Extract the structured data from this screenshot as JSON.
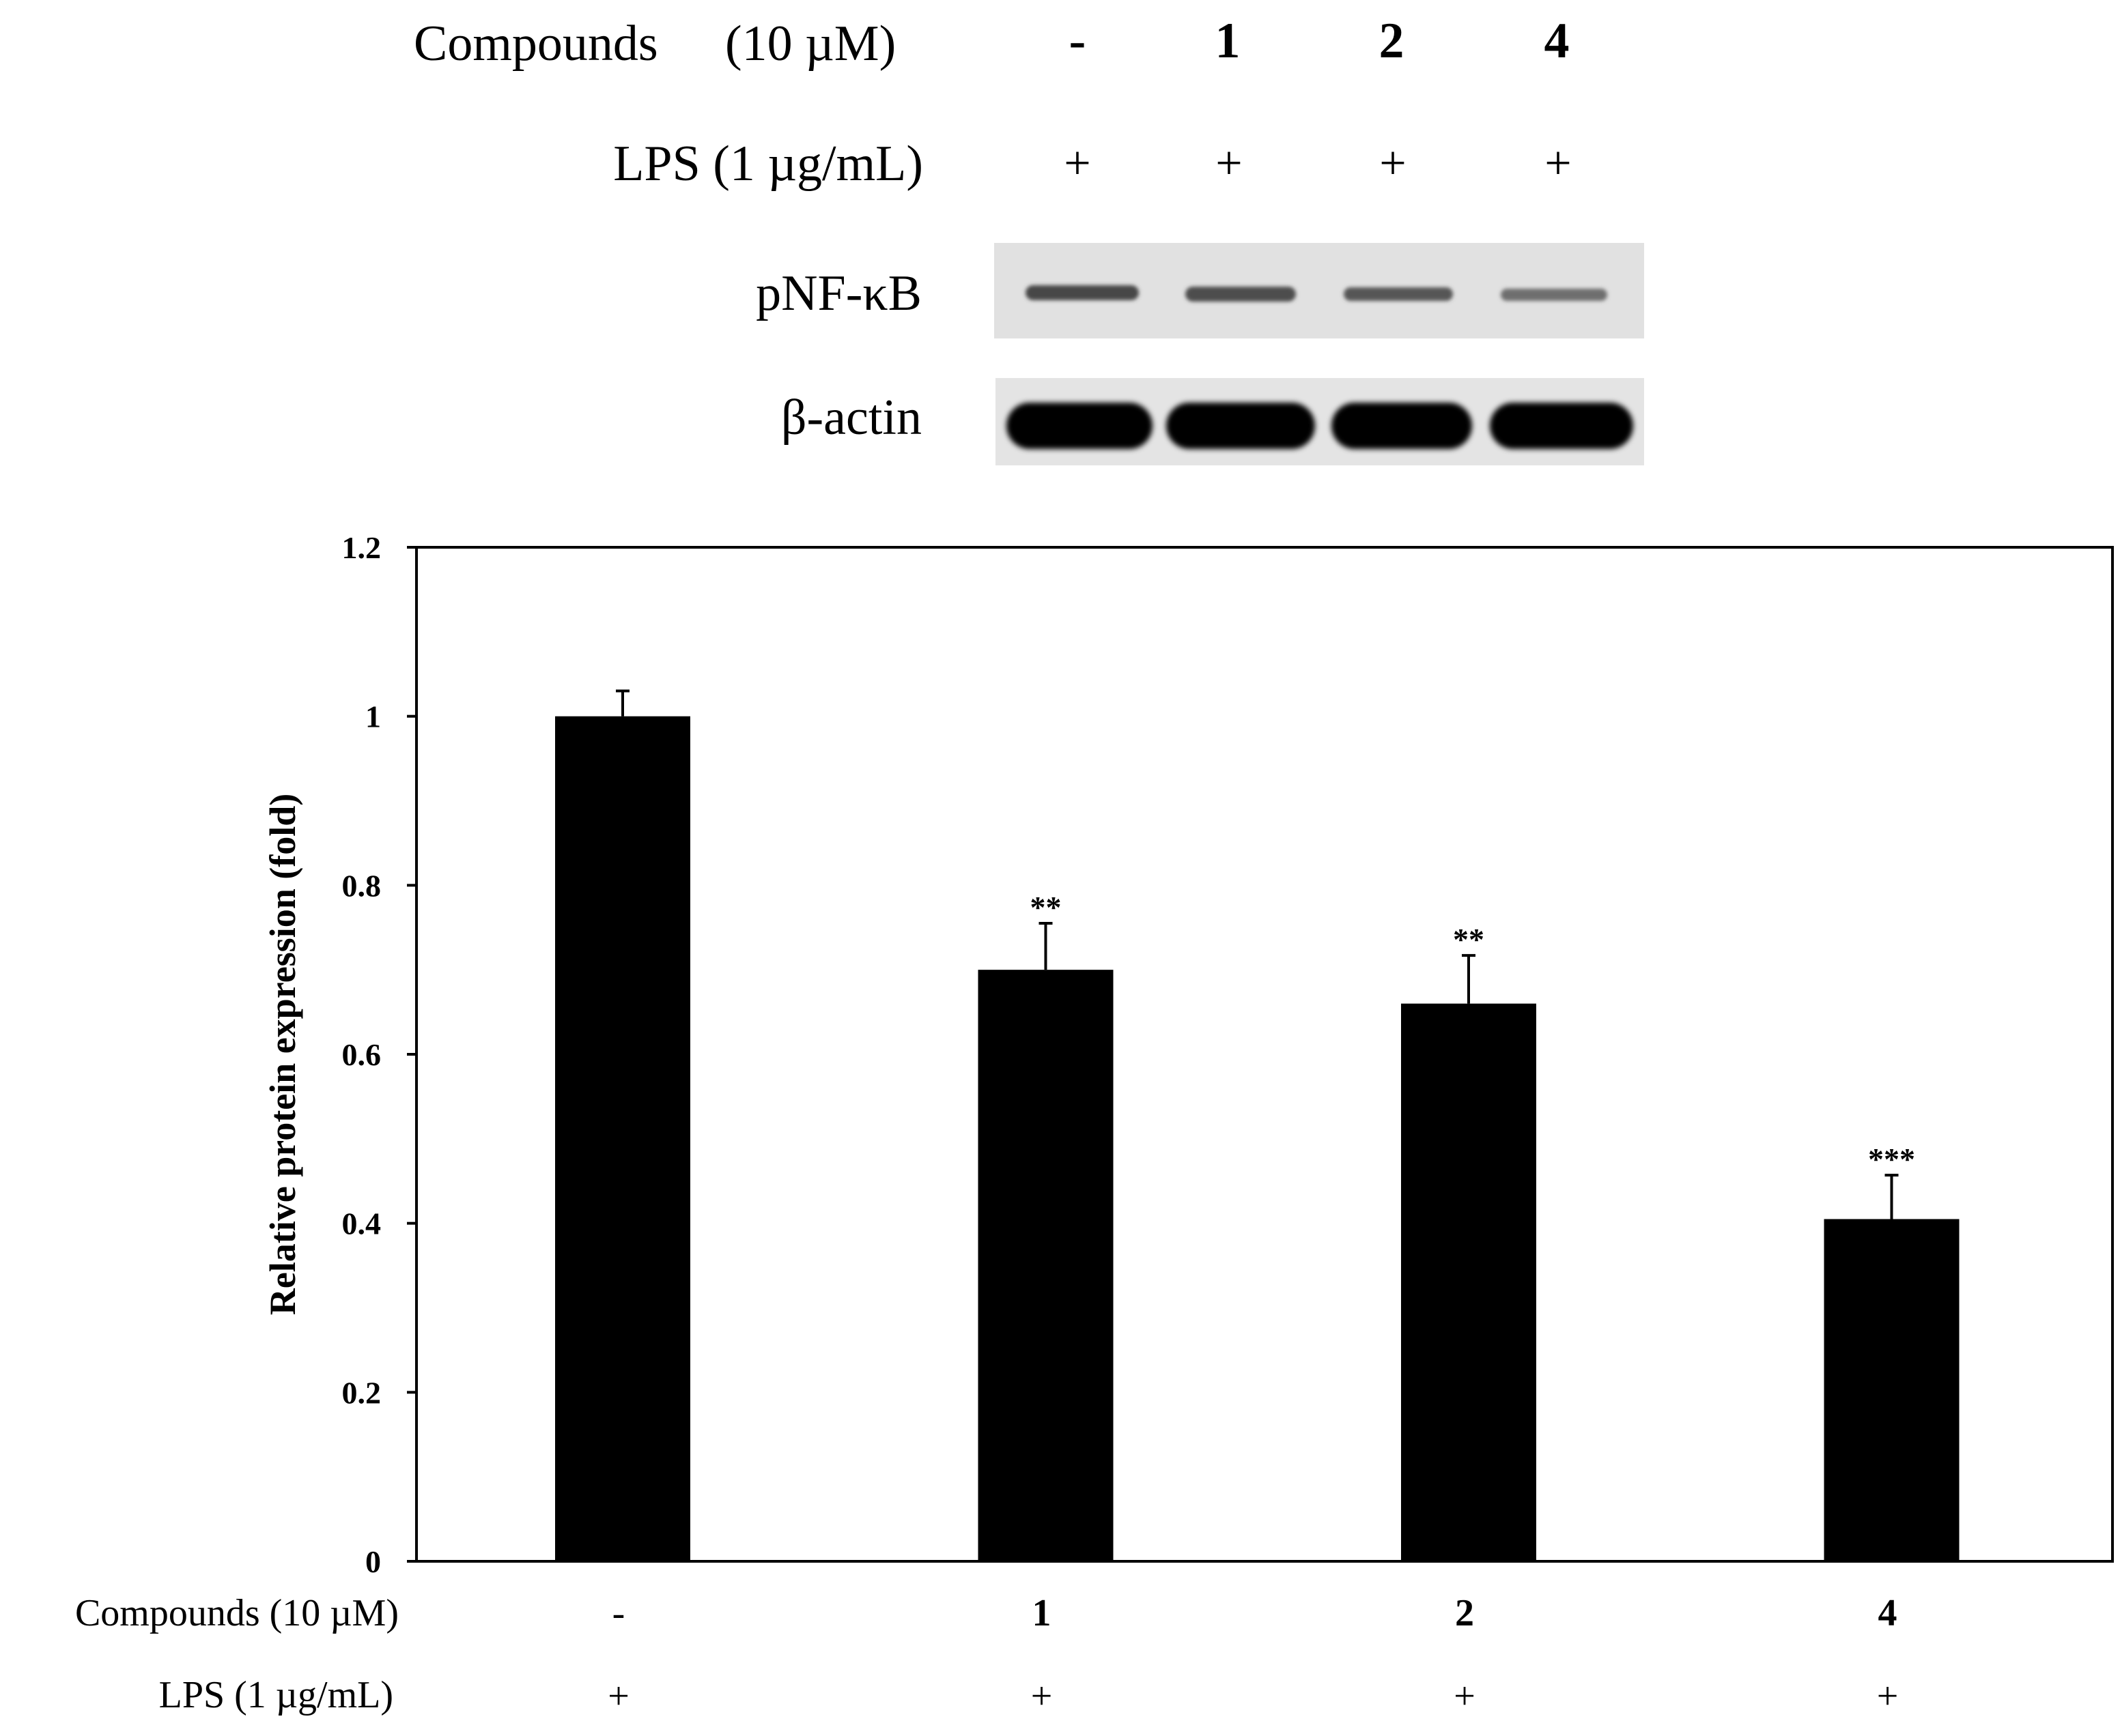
{
  "blot": {
    "compounds_label": "Compounds",
    "compounds_conc": "(10 µM)",
    "lps_label": "LPS (1 µg/mL)",
    "lanes": [
      "-",
      "1",
      "2",
      "4"
    ],
    "lps_marks": [
      "+",
      "+",
      "+",
      "+"
    ],
    "band_labels": [
      "pNF-κB",
      "β-actin"
    ]
  },
  "xaxis_rows": {
    "compounds_label": "Compounds (10 µM)",
    "lps_label": "LPS (1 µg/mL)",
    "compounds": [
      "-",
      "1",
      "2",
      "4"
    ],
    "lps": [
      "+",
      "+",
      "+",
      "+"
    ]
  },
  "chart_data": {
    "type": "bar",
    "categories": [
      "-",
      "1",
      "2",
      "4"
    ],
    "values": [
      1.0,
      0.7,
      0.66,
      0.405
    ],
    "errors": [
      0.03,
      0.055,
      0.057,
      0.052
    ],
    "significance": [
      "",
      "**",
      "**",
      "***"
    ],
    "title": "",
    "xlabel": "",
    "ylabel": "Relative protein expression (fold)",
    "ylim": [
      0,
      1.2
    ],
    "yticks": [
      0,
      0.2,
      0.4,
      0.6,
      0.8,
      1,
      1.2
    ],
    "ytick_labels": [
      "0",
      "0.2",
      "0.4",
      "0.6",
      "0.8",
      "1",
      "1.2"
    ],
    "grid": false,
    "bar_color": "#000000"
  }
}
